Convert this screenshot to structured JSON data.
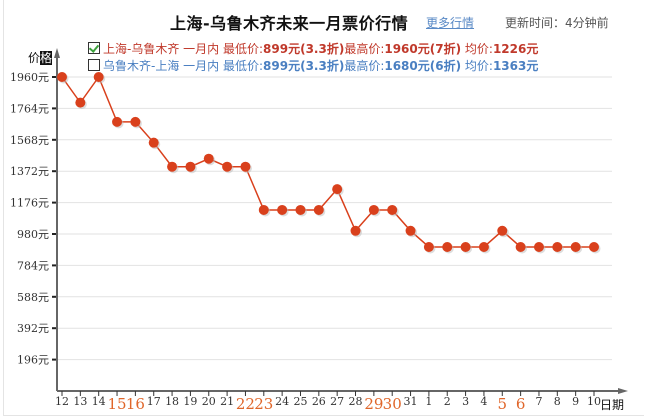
{
  "header": {
    "title": "上海-乌鲁木齐未来一月票价行情",
    "more_link": "更多行情",
    "updated": "更新时间：4分钟前"
  },
  "legend": [
    {
      "checked": true,
      "route": "上海-乌鲁木齐 一月内",
      "min_label": "最低价:",
      "min_value": "899元(3.3折)",
      "max_label": "最高价:",
      "max_value": "1960元(7折)",
      "avg_label": "均价:",
      "avg_value": "1226元",
      "color": "#c0392b"
    },
    {
      "checked": false,
      "route": "乌鲁木齐-上海 一月内",
      "min_label": "最低价:",
      "min_value": "899元(3.3折)",
      "max_label": "最高价:",
      "max_value": "1680元(6折)",
      "avg_label": "均价:",
      "avg_value": "1363元",
      "color": "#4a7fc1"
    }
  ],
  "axes": {
    "ylabel_a": "价",
    "ylabel_b": "格",
    "xlabel": "日期"
  },
  "chart_data": {
    "type": "line",
    "title": "上海-乌鲁木齐未来一月票价行情",
    "xlabel": "日期",
    "ylabel": "价格",
    "ylim": [
      0,
      1960
    ],
    "yticks": [
      196,
      392,
      588,
      784,
      980,
      1176,
      1372,
      1568,
      1764,
      1960
    ],
    "ytick_labels": [
      "196元",
      "392元",
      "588元",
      "784元",
      "980元",
      "1176元",
      "1372元",
      "1568元",
      "1764元",
      "1960元"
    ],
    "grid": true,
    "legend_position": "top",
    "categories": [
      "12",
      "13",
      "14",
      "15",
      "16",
      "17",
      "18",
      "19",
      "20",
      "21",
      "22",
      "23",
      "24",
      "25",
      "26",
      "27",
      "28",
      "29",
      "30",
      "31",
      "1",
      "2",
      "3",
      "4",
      "5",
      "6",
      "7",
      "8",
      "9",
      "10"
    ],
    "highlighted_categories": [
      "15",
      "16",
      "22",
      "23",
      "29",
      "30",
      "5",
      "6"
    ],
    "series": [
      {
        "name": "上海-乌鲁木齐",
        "color": "#d9401c",
        "values": [
          1960,
          1800,
          1960,
          1680,
          1680,
          1550,
          1400,
          1400,
          1450,
          1400,
          1400,
          1130,
          1130,
          1130,
          1130,
          1260,
          1000,
          1130,
          1130,
          1000,
          899,
          899,
          899,
          899,
          1000,
          899,
          899,
          899,
          899,
          899
        ]
      }
    ]
  }
}
